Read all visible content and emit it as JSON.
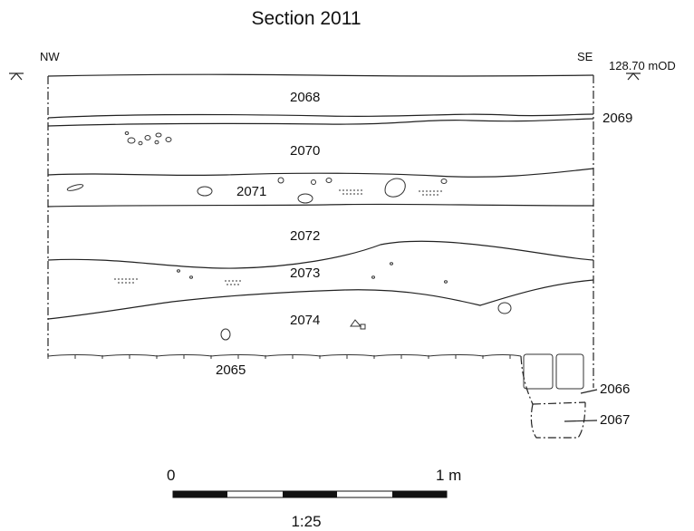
{
  "title": "Section 2011",
  "orientation": {
    "left": "NW",
    "right": "SE"
  },
  "datum": {
    "label": "128.70 mOD"
  },
  "layers": [
    {
      "id": "2068"
    },
    {
      "id": "2069"
    },
    {
      "id": "2070"
    },
    {
      "id": "2071"
    },
    {
      "id": "2072"
    },
    {
      "id": "2073"
    },
    {
      "id": "2074"
    },
    {
      "id": "2065"
    },
    {
      "id": "2066"
    },
    {
      "id": "2067"
    }
  ],
  "scale_bar": {
    "start_label": "0",
    "end_label": "1 m",
    "ratio": "1:25"
  }
}
